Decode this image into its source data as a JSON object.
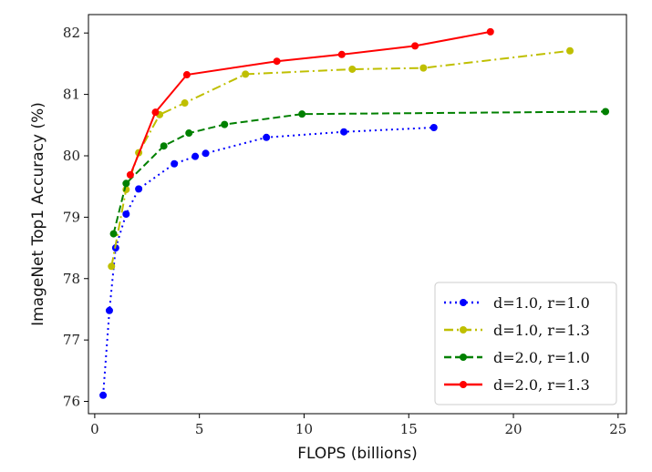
{
  "chart_data": {
    "type": "line",
    "title": "",
    "xlabel": "FLOPS (billions)",
    "ylabel": "ImageNet Top1 Accuracy (%)",
    "xlim": [
      -0.3,
      25.4
    ],
    "ylim": [
      75.8,
      82.3
    ],
    "xticks": [
      0,
      5,
      10,
      15,
      20,
      25
    ],
    "yticks": [
      76,
      77,
      78,
      79,
      80,
      81,
      82
    ],
    "grid": false,
    "legend_position": "bottom-right",
    "series": [
      {
        "name": "d=1.0, r=1.0",
        "color": "#0000ff",
        "dash": "dotted",
        "x": [
          0.4,
          0.7,
          1.0,
          1.5,
          2.1,
          3.8,
          4.8,
          5.3,
          8.2,
          11.9,
          16.2
        ],
        "y": [
          76.1,
          77.48,
          78.5,
          79.05,
          79.46,
          79.87,
          79.99,
          80.04,
          80.3,
          80.39,
          80.46
        ]
      },
      {
        "name": "d=1.0, r=1.3",
        "color": "#bfbf00",
        "dash": "dashdot",
        "x": [
          0.8,
          1.5,
          2.1,
          3.1,
          4.3,
          7.2,
          12.3,
          15.7,
          22.7
        ],
        "y": [
          78.2,
          79.45,
          80.05,
          80.67,
          80.86,
          81.33,
          81.41,
          81.43,
          81.71
        ]
      },
      {
        "name": "d=2.0, r=1.0",
        "color": "#008000",
        "dash": "dashed",
        "x": [
          0.9,
          1.5,
          3.3,
          4.5,
          6.2,
          9.9,
          24.4
        ],
        "y": [
          78.73,
          79.55,
          80.16,
          80.37,
          80.51,
          80.68,
          80.72
        ]
      },
      {
        "name": "d=2.0, r=1.3",
        "color": "#ff0000",
        "dash": "solid",
        "x": [
          1.7,
          2.9,
          4.4,
          8.7,
          11.8,
          15.3,
          18.9
        ],
        "y": [
          79.69,
          80.71,
          81.32,
          81.54,
          81.65,
          81.79,
          82.02
        ]
      }
    ]
  }
}
